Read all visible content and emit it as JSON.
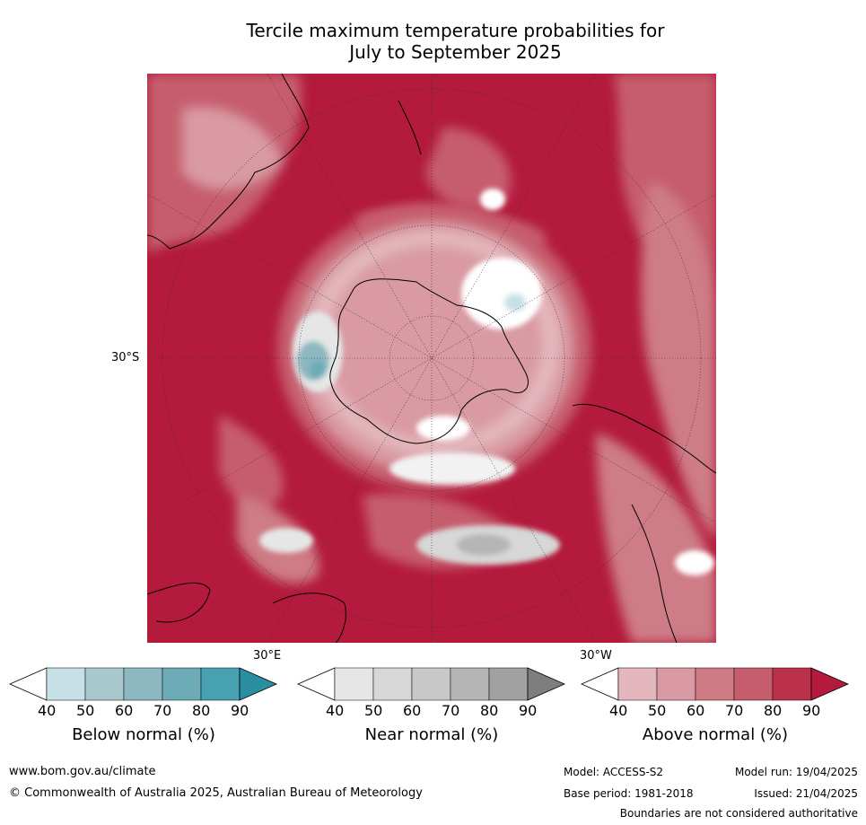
{
  "title": {
    "line1": "Tercile maximum temperature probabilities for",
    "line2": "July to September 2025"
  },
  "map": {
    "lat_label": "30°S",
    "lon_label_east": "30°E",
    "lon_label_west": "30°W"
  },
  "legends": [
    {
      "title": "Below normal (%)",
      "ticks": [
        "40",
        "50",
        "60",
        "70",
        "80",
        "90"
      ],
      "colors": [
        "#ffffff",
        "#c6e0e6",
        "#a8c8ce",
        "#8db7c1",
        "#6dabb7",
        "#47a1b1",
        "#2a8ea2"
      ]
    },
    {
      "title": "Near normal (%)",
      "ticks": [
        "40",
        "50",
        "60",
        "70",
        "80",
        "90"
      ],
      "colors": [
        "#ffffff",
        "#e6e6e6",
        "#d7d7d7",
        "#c8c8c8",
        "#b5b5b5",
        "#a1a1a1",
        "#7e7e7e"
      ]
    },
    {
      "title": "Above normal (%)",
      "ticks": [
        "40",
        "50",
        "60",
        "70",
        "80",
        "90"
      ],
      "colors": [
        "#ffffff",
        "#e3b7bd",
        "#d99aa3",
        "#ce7b86",
        "#c65d6d",
        "#bb3149",
        "#b31a3b"
      ]
    }
  ],
  "footer": {
    "website": "www.bom.gov.au/climate",
    "copyright": "© Commonwealth of Australia 2025, Australian Bureau of Meteorology",
    "model": "Model: ACCESS-S2",
    "model_run": "Model run: 19/04/2025",
    "base_period": "Base period: 1981-2018",
    "issued": "Issued: 21/04/2025",
    "disclaimer": "Boundaries are not considered authoritative"
  }
}
